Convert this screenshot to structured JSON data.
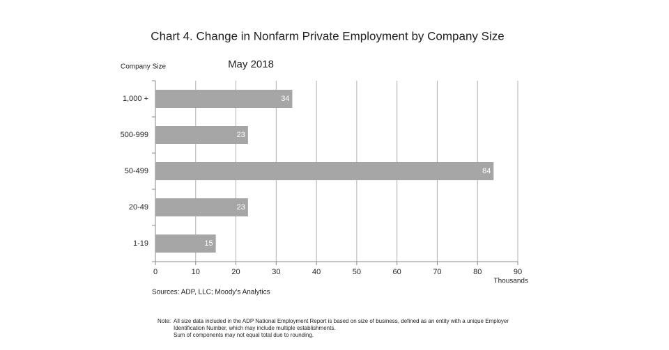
{
  "chart_data": {
    "type": "bar",
    "orientation": "horizontal",
    "title": "Chart 4. Change in Nonfarm Private Employment by Company Size",
    "subtitle": "May 2018",
    "y_label": "Company Size",
    "x_label": "Thousands",
    "source": "Sources: ADP, LLC; Moody's Analytics",
    "note_label": "Note:",
    "note": [
      "All size data included in the ADP National Employment Report is based on size of business, defined as an entity with a unique Employer",
      "Identification Number, which may include multiple establishments.",
      "Sum of components may not equal total due to rounding."
    ],
    "categories": [
      "1,000 +",
      "500-999",
      "50-499",
      "20-49",
      "1-19"
    ],
    "values": [
      34,
      23,
      84,
      23,
      15
    ],
    "color": "#a6a6a6",
    "xlim": [
      0,
      90
    ],
    "xticks": [
      0,
      10,
      20,
      30,
      40,
      50,
      60,
      70,
      80,
      90
    ],
    "grid": true
  }
}
